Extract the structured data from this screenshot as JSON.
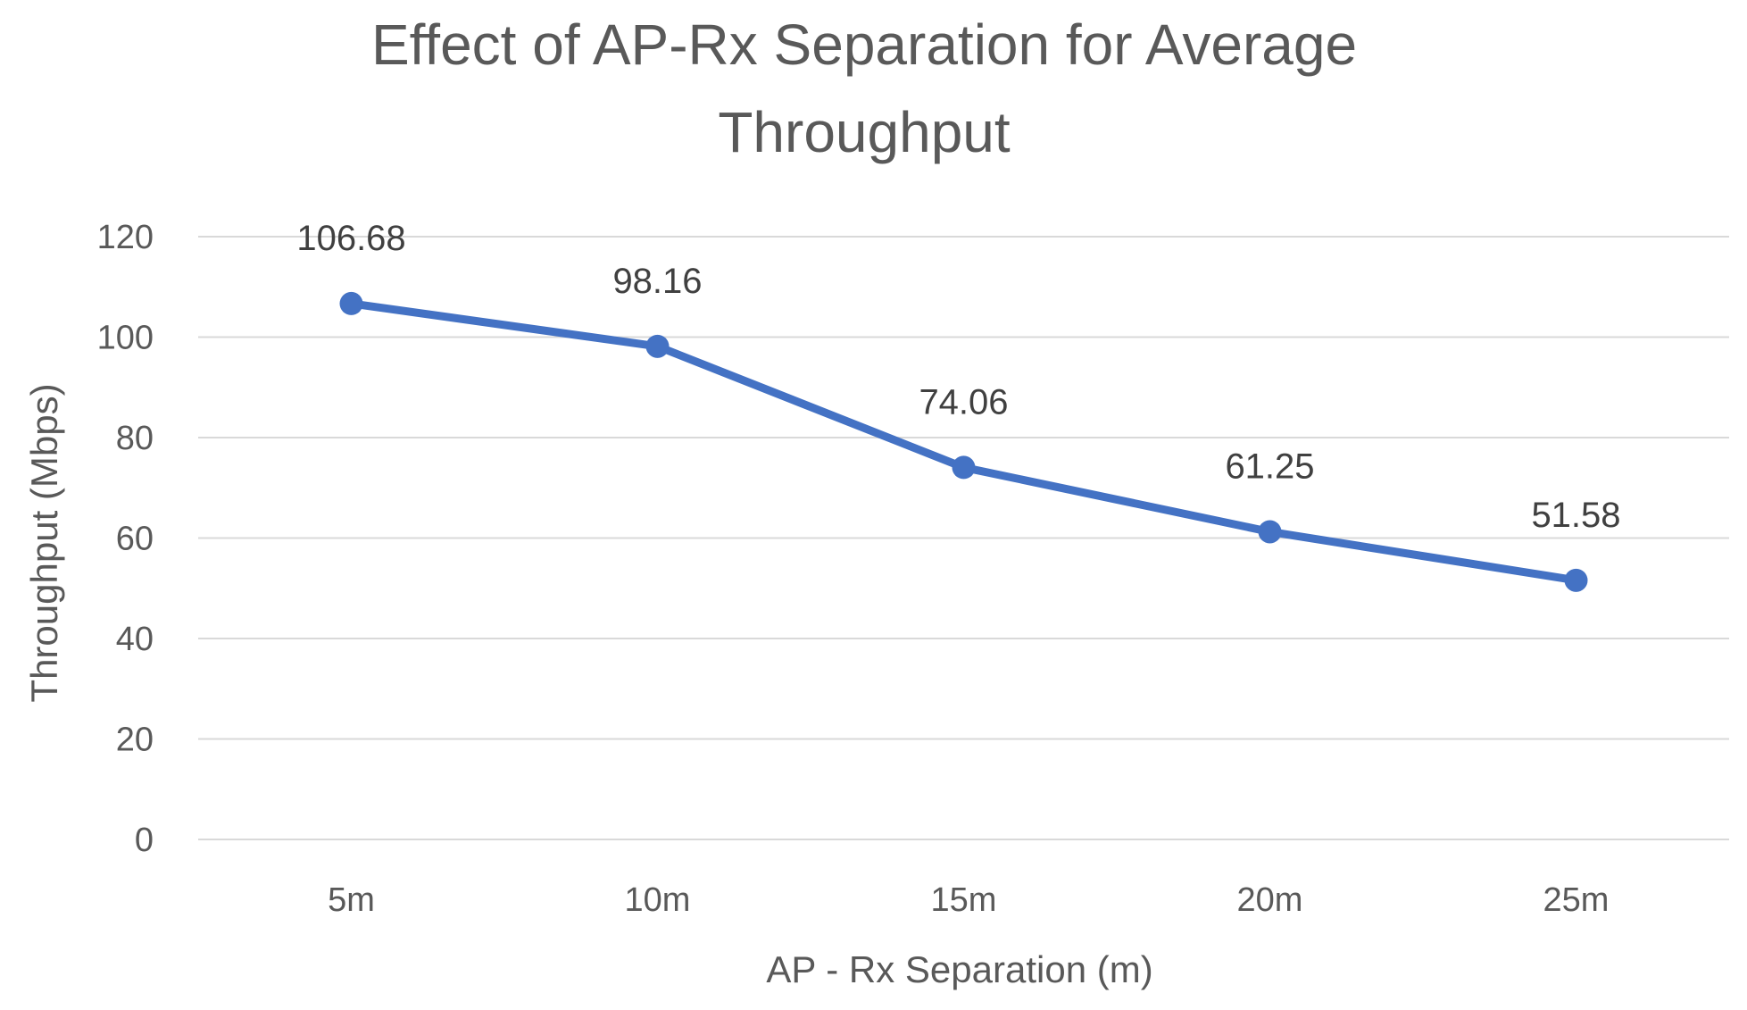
{
  "chart_data": {
    "type": "line",
    "title_lines": [
      "Effect of AP-Rx Separation for Average",
      "Throughput"
    ],
    "xlabel": "AP - Rx Separation (m)",
    "ylabel": "Throughput (Mbps)",
    "categories": [
      "5m",
      "10m",
      "15m",
      "20m",
      "25m"
    ],
    "series": [
      {
        "values": [
          106.68,
          98.16,
          74.06,
          61.25,
          51.58
        ],
        "data_labels": [
          "106.68",
          "98.16",
          "74.06",
          "61.25",
          "51.58"
        ],
        "color": "#4472c4"
      }
    ],
    "yticks": [
      "0",
      "20",
      "40",
      "60",
      "80",
      "100",
      "120"
    ],
    "ylim": [
      0,
      120
    ],
    "grid": true,
    "legend": "none"
  }
}
